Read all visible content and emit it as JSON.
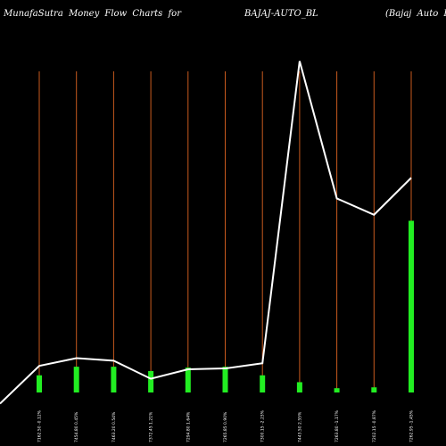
{
  "header": {
    "left": "MunafaSutra  Money Flow  Charts for",
    "middle": "BAJAJ-AUTO_BL",
    "right": "(Bajaj Auto  Limit"
  },
  "colors": {
    "background": "#000000",
    "bar": "#22ee22",
    "gridline": "#c85a1e",
    "line": "#ffffff"
  },
  "chart_data": {
    "type": "bar",
    "title": "",
    "grid": true,
    "grid_axis": "x",
    "categories": [
      "7162.50 -0.12%",
      "7454.80 0.45%",
      "7463.20 0.54%",
      "7372.45 1.21%",
      "7294.80 1.64%",
      "7265.85 0.90%",
      "7300.15 -2.23%",
      "7443.50 2.55%",
      "7263.80 -1.17%",
      "7202.15 -0.87%",
      "7262.95 -1.45%"
    ],
    "values": [
      20,
      30,
      30,
      25,
      29,
      30,
      20,
      12,
      5,
      6,
      200
    ],
    "series": [
      {
        "kind": "bar",
        "values": [
          20,
          30,
          30,
          25,
          29,
          30,
          20,
          12,
          5,
          6,
          200
        ]
      },
      {
        "kind": "line",
        "values": [
          31,
          40,
          37,
          16,
          27,
          28,
          34,
          386,
          226,
          207,
          250
        ]
      }
    ],
    "line_start": -13,
    "ylim": [
      0,
      400
    ]
  }
}
